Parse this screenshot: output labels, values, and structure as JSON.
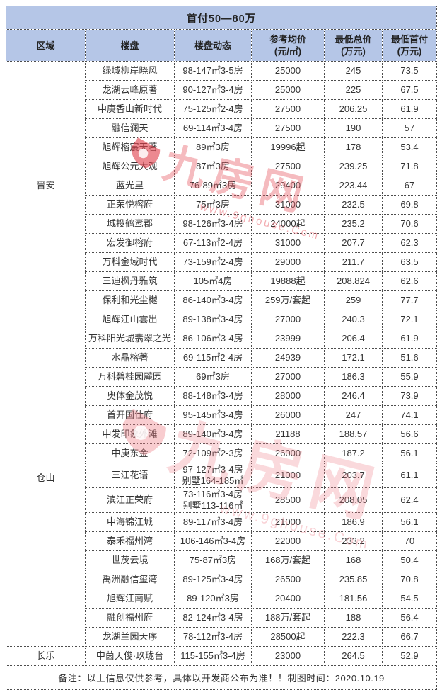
{
  "table": {
    "title": "首付50—80万",
    "columns": [
      "区域",
      "楼盘",
      "楼盘动态",
      "参考均价\n(元/㎡)",
      "最低总价\n(万元)",
      "最低首付\n(万元)"
    ],
    "regions": [
      {
        "name": "晋安",
        "properties": [
          {
            "name": "绿城柳岸晓风",
            "dynamic": "98-147㎡3-5房",
            "avg_price": "25000",
            "min_total": "245",
            "min_down": "73.5"
          },
          {
            "name": "龙湖云峰原著",
            "dynamic": "90-127㎡3-4房",
            "avg_price": "25000",
            "min_total": "225",
            "min_down": "67.5"
          },
          {
            "name": "中庚香山新时代",
            "dynamic": "75-125㎡2-4房",
            "avg_price": "27500",
            "min_total": "206.25",
            "min_down": "61.9"
          },
          {
            "name": "融信澜天",
            "dynamic": "69-114㎡3-4房",
            "avg_price": "27500",
            "min_total": "190",
            "min_down": "57"
          },
          {
            "name": "旭辉榕宸天著",
            "dynamic": "89㎡3房",
            "avg_price": "19996起",
            "min_total": "178",
            "min_down": "53.4"
          },
          {
            "name": "旭辉公元大观",
            "dynamic": "87㎡3房",
            "avg_price": "27500",
            "min_total": "239.25",
            "min_down": "71.8"
          },
          {
            "name": "蓝光里",
            "dynamic": "76-89㎡3房",
            "avg_price": "29400",
            "min_total": "223.44",
            "min_down": "67"
          },
          {
            "name": "正荣悦榕府",
            "dynamic": "75㎡3房",
            "avg_price": "31000",
            "min_total": "232.5",
            "min_down": "69.8"
          },
          {
            "name": "城投鹤鸾郡",
            "dynamic": "98-126㎡3-4房",
            "avg_price": "24000起",
            "min_total": "235.2",
            "min_down": "70.6"
          },
          {
            "name": "宏发御榕府",
            "dynamic": "67-113㎡2-4房",
            "avg_price": "31000",
            "min_total": "207.7",
            "min_down": "62.3"
          },
          {
            "name": "万科金域时代",
            "dynamic": "73-159㎡2-4房",
            "avg_price": "29000",
            "min_total": "211.7",
            "min_down": "63.5"
          },
          {
            "name": "三迪枫丹雅筑",
            "dynamic": "105㎡4房",
            "avg_price": "19888起",
            "min_total": "208.824",
            "min_down": "62.6"
          },
          {
            "name": "保利和光尘樾",
            "dynamic": "86-140㎡3-4房",
            "avg_price": "259万/套起",
            "min_total": "259",
            "min_down": "77.7"
          }
        ]
      },
      {
        "name": "仓山",
        "properties": [
          {
            "name": "旭辉江山雲出",
            "dynamic": "89-138㎡3-4房",
            "avg_price": "27000",
            "min_total": "240.3",
            "min_down": "72.1"
          },
          {
            "name": "万科阳光城翡翠之光",
            "dynamic": "86-106㎡3-4房",
            "avg_price": "23999",
            "min_total": "206.4",
            "min_down": "61.9"
          },
          {
            "name": "水晶榕著",
            "dynamic": "69-115㎡2-4房",
            "avg_price": "24939",
            "min_total": "172.1",
            "min_down": "51.6"
          },
          {
            "name": "万科碧桂园麓园",
            "dynamic": "69㎡3房",
            "avg_price": "27000",
            "min_total": "186.3",
            "min_down": "55.9"
          },
          {
            "name": "奥体金茂悦",
            "dynamic": "88-148㎡3-4房",
            "avg_price": "28000",
            "min_total": "246.4",
            "min_down": "73.9"
          },
          {
            "name": "首开国仕府",
            "dynamic": "95-145㎡3-4房",
            "avg_price": "26000",
            "min_total": "247",
            "min_down": "74.1"
          },
          {
            "name": "中发印象外滩",
            "dynamic": "89-140㎡3-4房",
            "avg_price": "21188",
            "min_total": "188.57",
            "min_down": "56.6"
          },
          {
            "name": "中庚东金",
            "dynamic": "72-109㎡2-3房",
            "avg_price": "26000",
            "min_total": "187.2",
            "min_down": "56.1"
          },
          {
            "name": "三江花语",
            "dynamic": "97-127㎡3-4房\n别墅164-185㎡",
            "avg_price": "21000",
            "min_total": "203.7",
            "min_down": "61.1"
          },
          {
            "name": "滨江正荣府",
            "dynamic": "73-116㎡3-4房\n别墅113-116㎡",
            "avg_price": "28500",
            "min_total": "208.05",
            "min_down": "62.4"
          },
          {
            "name": "中海锦江城",
            "dynamic": "89-117㎡3-4房",
            "avg_price": "21000",
            "min_total": "186.9",
            "min_down": "56.1"
          },
          {
            "name": "泰禾福州湾",
            "dynamic": "106-146㎡3-4房",
            "avg_price": "22000",
            "min_total": "233.2",
            "min_down": "70"
          },
          {
            "name": "世茂云境",
            "dynamic": "75-87㎡3房",
            "avg_price": "168万/套起",
            "min_total": "168",
            "min_down": "50.4"
          },
          {
            "name": "禹洲融信玺湾",
            "dynamic": "89-125㎡3-4房",
            "avg_price": "26500",
            "min_total": "235.85",
            "min_down": "70.8"
          },
          {
            "name": "旭辉江南赋",
            "dynamic": "89-120㎡3房",
            "avg_price": "20400",
            "min_total": "181.56",
            "min_down": "54.5"
          },
          {
            "name": "融创福州府",
            "dynamic": "82-124㎡3-4房",
            "avg_price": "188万/套起",
            "min_total": "188",
            "min_down": "56.4"
          },
          {
            "name": "龙湖兰园天序",
            "dynamic": "78-112㎡3-4房",
            "avg_price": "28500起",
            "min_total": "222.3",
            "min_down": "66.7"
          }
        ]
      },
      {
        "name": "长乐",
        "properties": [
          {
            "name": "中茵天俊·玖珑台",
            "dynamic": "115-155㎡3-4房",
            "avg_price": "23000",
            "min_total": "264.5",
            "min_down": "52.9"
          }
        ]
      }
    ],
    "footnote": "备注：以上信息仅供参考，具体以开发商公布为准！！制图时间：2020.10.19"
  },
  "watermark": {
    "text": "九房网",
    "url": "www.9ghouse.Com"
  },
  "colors": {
    "header_bg": "#b5c6e7",
    "border": "#4d4d4d",
    "watermark_pink": "#e85c66"
  }
}
